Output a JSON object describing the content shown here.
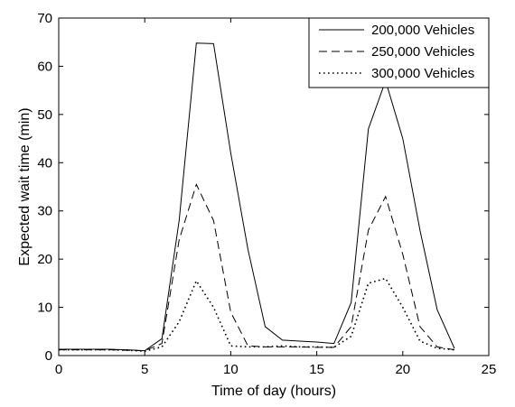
{
  "chart_data": {
    "type": "line",
    "title": "",
    "xlabel": "Time of day (hours)",
    "ylabel": "Expected wait time (min)",
    "xlim": [
      0,
      25
    ],
    "ylim": [
      0,
      70
    ],
    "xticks": [
      "0",
      "5",
      "10",
      "15",
      "20",
      "25"
    ],
    "yticks": [
      "0",
      "10",
      "20",
      "30",
      "40",
      "50",
      "60",
      "70"
    ],
    "grid": false,
    "legend_position": "top-right",
    "series": [
      {
        "name": "200,000 Vehicles",
        "style": "solid",
        "x": [
          0,
          1,
          2,
          3,
          4,
          5,
          6,
          7,
          8,
          9,
          10,
          11,
          12,
          13,
          14,
          15,
          16,
          17,
          18,
          19,
          20,
          21,
          22,
          23
        ],
        "y": [
          1.3,
          1.3,
          1.3,
          1.3,
          1.2,
          1.0,
          3.5,
          28.0,
          64.8,
          64.7,
          42.0,
          22.0,
          6.0,
          3.2,
          3.0,
          2.8,
          2.5,
          11.0,
          47.0,
          57.0,
          45.0,
          26.0,
          9.5,
          1.5
        ]
      },
      {
        "name": "250,000 Vehicles",
        "style": "dashed",
        "x": [
          0,
          1,
          2,
          3,
          4,
          5,
          6,
          7,
          8,
          9,
          10,
          11,
          12,
          13,
          14,
          15,
          16,
          17,
          18,
          19,
          20,
          21,
          22,
          23
        ],
        "y": [
          1.2,
          1.2,
          1.2,
          1.2,
          1.1,
          1.0,
          2.5,
          24.0,
          35.5,
          28.0,
          9.0,
          2.0,
          1.8,
          1.8,
          1.8,
          1.7,
          1.7,
          6.0,
          26.0,
          33.0,
          21.0,
          6.0,
          1.8,
          1.2
        ]
      },
      {
        "name": "300,000 Vehicles",
        "style": "dotted",
        "x": [
          0,
          1,
          2,
          3,
          4,
          5,
          6,
          7,
          8,
          9,
          10,
          11,
          12,
          13,
          14,
          15,
          16,
          17,
          18,
          19,
          20,
          21,
          22,
          23
        ],
        "y": [
          1.2,
          1.2,
          1.2,
          1.2,
          1.1,
          0.9,
          1.8,
          7.0,
          15.5,
          10.0,
          2.0,
          1.8,
          1.8,
          2.0,
          1.8,
          1.8,
          1.7,
          4.0,
          15.0,
          16.0,
          10.0,
          3.0,
          1.5,
          1.2
        ]
      }
    ]
  }
}
